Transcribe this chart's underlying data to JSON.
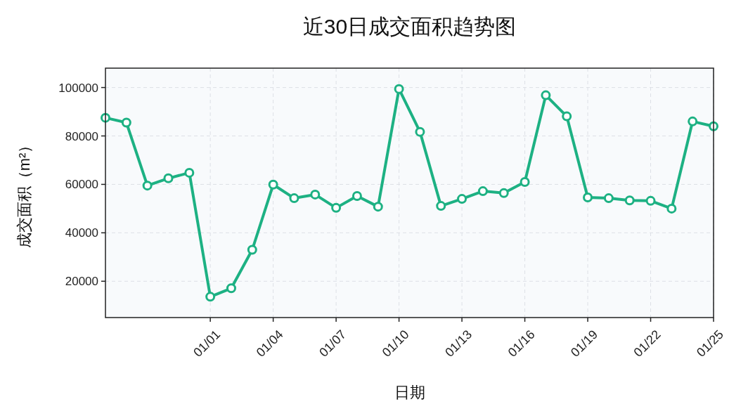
{
  "chart_data": {
    "type": "line",
    "title": "近30日成交面积趋势图",
    "xlabel": "日期",
    "ylabel": "成交面积（m²）",
    "categories": [
      null,
      null,
      null,
      null,
      null,
      "01/01",
      null,
      null,
      "01/04",
      null,
      null,
      "01/07",
      null,
      null,
      "01/10",
      null,
      null,
      "01/13",
      null,
      null,
      "01/16",
      null,
      null,
      "01/19",
      null,
      null,
      "01/22",
      null,
      null,
      "01/25"
    ],
    "series": [
      {
        "color": "#1db183",
        "values": [
          87500,
          85500,
          59500,
          62500,
          64800,
          13600,
          17100,
          33000,
          59900,
          54300,
          55800,
          50300,
          55200,
          50800,
          99400,
          81700,
          51100,
          54000,
          57200,
          56400,
          61000,
          96800,
          88100,
          54600,
          54300,
          53400,
          53200,
          50000,
          86000,
          84000
        ]
      }
    ],
    "ylim": [
      5000,
      108000
    ],
    "yticks": [
      20000,
      40000,
      60000,
      80000,
      100000
    ],
    "grid": true,
    "marker": "circle",
    "line_style": "solid"
  }
}
